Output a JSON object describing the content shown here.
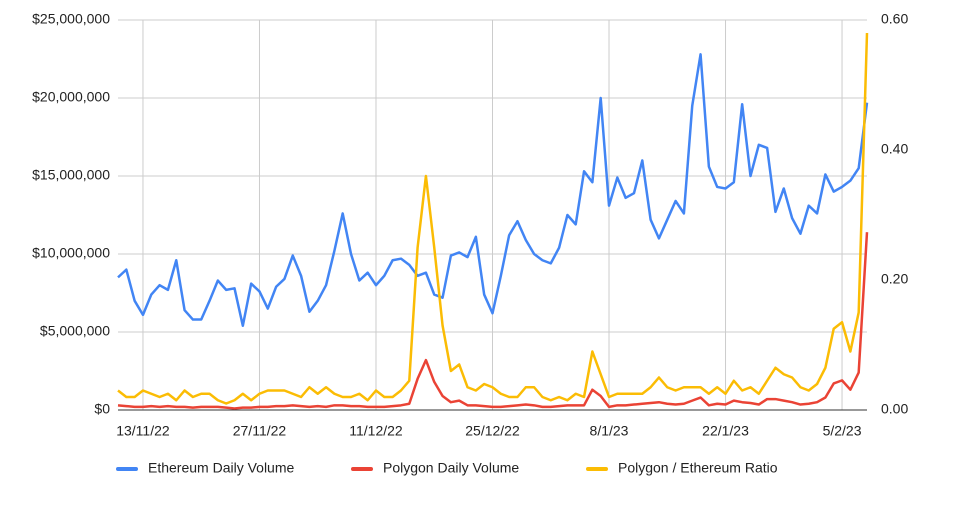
{
  "chart_data": {
    "type": "line",
    "categories": [
      null,
      null,
      null,
      "13/11/22",
      null,
      null,
      null,
      null,
      null,
      null,
      null,
      null,
      null,
      null,
      null,
      null,
      null,
      "27/11/22",
      null,
      null,
      null,
      null,
      null,
      null,
      null,
      null,
      null,
      null,
      null,
      null,
      null,
      "11/12/22",
      null,
      null,
      null,
      null,
      null,
      null,
      null,
      null,
      null,
      null,
      null,
      null,
      null,
      "25/12/22",
      null,
      null,
      null,
      null,
      null,
      null,
      null,
      null,
      null,
      null,
      null,
      null,
      null,
      "8/1/23",
      null,
      null,
      null,
      null,
      null,
      null,
      null,
      null,
      null,
      null,
      null,
      null,
      null,
      "22/1/23",
      null,
      null,
      null,
      null,
      null,
      null,
      null,
      null,
      null,
      null,
      null,
      null,
      null,
      "5/2/23",
      null,
      null,
      null
    ],
    "series": [
      {
        "name": "Ethereum Daily Volume",
        "color": "#4285f4",
        "axis": "y",
        "values": [
          8500000,
          9000000,
          7000000,
          6100000,
          7400000,
          8000000,
          7700000,
          9600000,
          6400000,
          5800000,
          5800000,
          7000000,
          8300000,
          7700000,
          7800000,
          5400000,
          8100000,
          7600000,
          6500000,
          7900000,
          8400000,
          9900000,
          8600000,
          6300000,
          7000000,
          8000000,
          10200000,
          12600000,
          10000000,
          8300000,
          8800000,
          8000000,
          8600000,
          9600000,
          9700000,
          9300000,
          8600000,
          8800000,
          7400000,
          7200000,
          9900000,
          10100000,
          9800000,
          11100000,
          7400000,
          6200000,
          8600000,
          11200000,
          12100000,
          10900000,
          10000000,
          9600000,
          9400000,
          10400000,
          12500000,
          11900000,
          15300000,
          14600000,
          20000000,
          13100000,
          14900000,
          13600000,
          13900000,
          16000000,
          12200000,
          11000000,
          12200000,
          13400000,
          12600000,
          19500000,
          22800000,
          15600000,
          14300000,
          14200000,
          14600000,
          19600000,
          15000000,
          17000000,
          16800000,
          12700000,
          14200000,
          12300000,
          11300000,
          13100000,
          12600000,
          15100000,
          14000000,
          14300000,
          14700000,
          15500000,
          19700000
        ]
      },
      {
        "name": "Polygon Daily Volume",
        "color": "#ea4335",
        "axis": "y",
        "values": [
          300000,
          250000,
          200000,
          200000,
          250000,
          200000,
          250000,
          200000,
          200000,
          150000,
          200000,
          200000,
          200000,
          150000,
          100000,
          150000,
          150000,
          200000,
          200000,
          250000,
          250000,
          300000,
          250000,
          200000,
          250000,
          200000,
          300000,
          300000,
          250000,
          250000,
          200000,
          200000,
          200000,
          250000,
          300000,
          400000,
          2000000,
          3200000,
          1800000,
          900000,
          500000,
          600000,
          300000,
          300000,
          250000,
          200000,
          200000,
          250000,
          300000,
          350000,
          300000,
          200000,
          200000,
          250000,
          300000,
          300000,
          300000,
          1300000,
          900000,
          200000,
          300000,
          300000,
          350000,
          400000,
          450000,
          500000,
          400000,
          350000,
          400000,
          600000,
          800000,
          300000,
          400000,
          350000,
          600000,
          500000,
          450000,
          350000,
          700000,
          700000,
          600000,
          500000,
          350000,
          400000,
          500000,
          800000,
          1700000,
          1900000,
          1300000,
          2400000,
          11400000
        ]
      },
      {
        "name": "Polygon / Ethereum Ratio",
        "color": "#fbbc04",
        "axis": "y2",
        "values": [
          0.03,
          0.02,
          0.02,
          0.03,
          0.025,
          0.02,
          0.025,
          0.015,
          0.03,
          0.02,
          0.025,
          0.025,
          0.015,
          0.01,
          0.015,
          0.025,
          0.015,
          0.025,
          0.03,
          0.03,
          0.03,
          0.025,
          0.02,
          0.035,
          0.025,
          0.035,
          0.025,
          0.02,
          0.02,
          0.025,
          0.015,
          0.03,
          0.02,
          0.02,
          0.03,
          0.045,
          0.25,
          0.36,
          0.25,
          0.13,
          0.06,
          0.07,
          0.035,
          0.03,
          0.04,
          0.035,
          0.025,
          0.02,
          0.02,
          0.035,
          0.035,
          0.02,
          0.015,
          0.02,
          0.015,
          0.025,
          0.02,
          0.09,
          0.055,
          0.02,
          0.025,
          0.025,
          0.025,
          0.025,
          0.035,
          0.05,
          0.035,
          0.03,
          0.035,
          0.035,
          0.035,
          0.025,
          0.035,
          0.025,
          0.045,
          0.03,
          0.035,
          0.025,
          0.045,
          0.065,
          0.055,
          0.05,
          0.035,
          0.03,
          0.04,
          0.065,
          0.125,
          0.135,
          0.09,
          0.15,
          0.58
        ]
      }
    ],
    "ylim": [
      0,
      25000000
    ],
    "yticks": [
      {
        "value": 0,
        "label": "$0"
      },
      {
        "value": 5000000,
        "label": "$5,000,000"
      },
      {
        "value": 10000000,
        "label": "$10,000,000"
      },
      {
        "value": 15000000,
        "label": "$15,000,000"
      },
      {
        "value": 20000000,
        "label": "$20,000,000"
      },
      {
        "value": 25000000,
        "label": "$25,000,000"
      }
    ],
    "y2lim": [
      0,
      0.6
    ],
    "y2ticks": [
      {
        "value": 0,
        "label": "0.00"
      },
      {
        "value": 0.2,
        "label": "0.20"
      },
      {
        "value": 0.4,
        "label": "0.40"
      },
      {
        "value": 0.6,
        "label": "0.60"
      }
    ],
    "grid": true,
    "legend": "bottom"
  }
}
